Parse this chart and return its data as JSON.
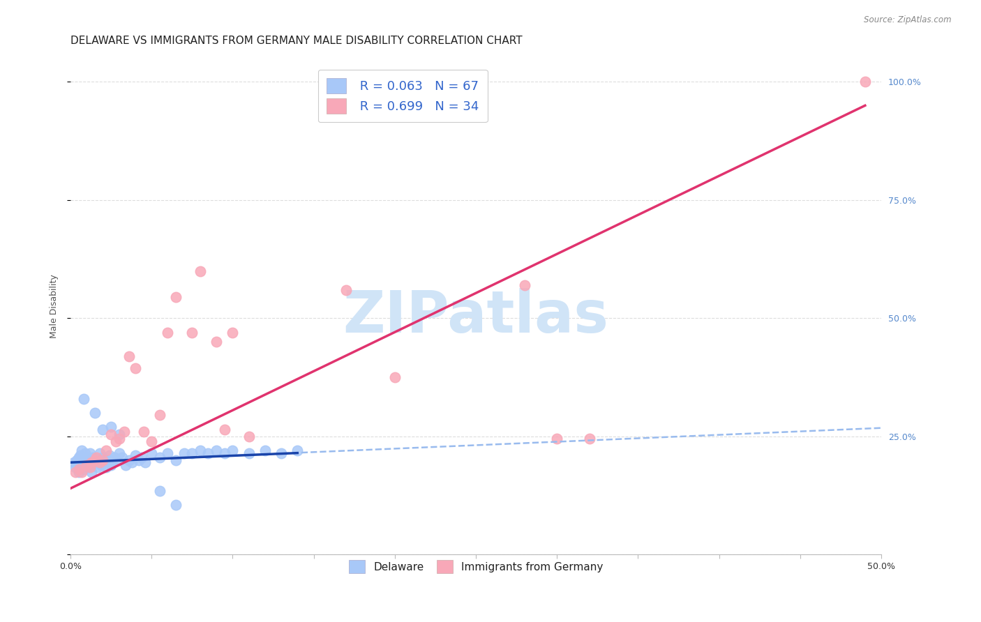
{
  "title": "DELAWARE VS IMMIGRANTS FROM GERMANY MALE DISABILITY CORRELATION CHART",
  "source": "Source: ZipAtlas.com",
  "ylabel": "Male Disability",
  "xmin": 0.0,
  "xmax": 0.5,
  "ymin": 0.0,
  "ymax": 1.05,
  "delaware_color": "#a8c8f8",
  "germany_color": "#f8a8b8",
  "delaware_line_color": "#1a44aa",
  "germany_line_color": "#e0336e",
  "dashed_line_color": "#99bbee",
  "watermark_text": "ZIPatlas",
  "watermark_color": "#d0e4f7",
  "legend_label1": " R = 0.063   N = 67",
  "legend_label2": " R = 0.699   N = 34",
  "legend_color": "#3366cc",
  "background_color": "#ffffff",
  "grid_color": "#dddddd",
  "title_fontsize": 11,
  "axis_label_fontsize": 9,
  "tick_fontsize": 9,
  "delaware_x": [
    0.002,
    0.003,
    0.004,
    0.005,
    0.005,
    0.006,
    0.006,
    0.007,
    0.007,
    0.008,
    0.008,
    0.009,
    0.009,
    0.01,
    0.01,
    0.011,
    0.011,
    0.012,
    0.012,
    0.013,
    0.013,
    0.014,
    0.015,
    0.016,
    0.017,
    0.018,
    0.019,
    0.02,
    0.021,
    0.022,
    0.023,
    0.024,
    0.025,
    0.026,
    0.027,
    0.028,
    0.03,
    0.032,
    0.034,
    0.036,
    0.038,
    0.04,
    0.042,
    0.044,
    0.046,
    0.05,
    0.055,
    0.06,
    0.065,
    0.07,
    0.075,
    0.08,
    0.085,
    0.09,
    0.095,
    0.1,
    0.11,
    0.12,
    0.13,
    0.14,
    0.008,
    0.015,
    0.02,
    0.025,
    0.03,
    0.055,
    0.065
  ],
  "delaware_y": [
    0.195,
    0.185,
    0.2,
    0.205,
    0.175,
    0.19,
    0.21,
    0.185,
    0.22,
    0.195,
    0.18,
    0.2,
    0.215,
    0.19,
    0.205,
    0.195,
    0.185,
    0.2,
    0.215,
    0.19,
    0.175,
    0.205,
    0.195,
    0.2,
    0.185,
    0.215,
    0.19,
    0.205,
    0.195,
    0.185,
    0.2,
    0.21,
    0.19,
    0.195,
    0.205,
    0.2,
    0.215,
    0.205,
    0.19,
    0.2,
    0.195,
    0.21,
    0.2,
    0.205,
    0.195,
    0.215,
    0.205,
    0.215,
    0.2,
    0.215,
    0.215,
    0.22,
    0.215,
    0.22,
    0.215,
    0.22,
    0.215,
    0.22,
    0.215,
    0.22,
    0.33,
    0.3,
    0.265,
    0.27,
    0.255,
    0.135,
    0.105
  ],
  "germany_x": [
    0.003,
    0.005,
    0.007,
    0.01,
    0.012,
    0.013,
    0.015,
    0.016,
    0.018,
    0.02,
    0.022,
    0.025,
    0.028,
    0.03,
    0.033,
    0.036,
    0.04,
    0.045,
    0.05,
    0.055,
    0.06,
    0.065,
    0.075,
    0.08,
    0.09,
    0.095,
    0.1,
    0.11,
    0.17,
    0.2,
    0.28,
    0.3,
    0.32,
    0.49
  ],
  "germany_y": [
    0.175,
    0.18,
    0.175,
    0.19,
    0.185,
    0.195,
    0.2,
    0.205,
    0.195,
    0.2,
    0.22,
    0.255,
    0.24,
    0.245,
    0.26,
    0.42,
    0.395,
    0.26,
    0.24,
    0.295,
    0.47,
    0.545,
    0.47,
    0.6,
    0.45,
    0.265,
    0.47,
    0.25,
    0.56,
    0.375,
    0.57,
    0.245,
    0.245,
    1.0
  ],
  "germany_trend_x0": 0.0,
  "germany_trend_y0": 0.14,
  "germany_trend_x1": 0.49,
  "germany_trend_y1": 0.95,
  "delaware_trend_x0": 0.0,
  "delaware_trend_y0": 0.195,
  "delaware_trend_x1": 0.14,
  "delaware_trend_y1": 0.215,
  "dashed_trend_x0": 0.0,
  "dashed_trend_y0": 0.195,
  "dashed_trend_x1": 0.5,
  "dashed_trend_y1": 0.268
}
